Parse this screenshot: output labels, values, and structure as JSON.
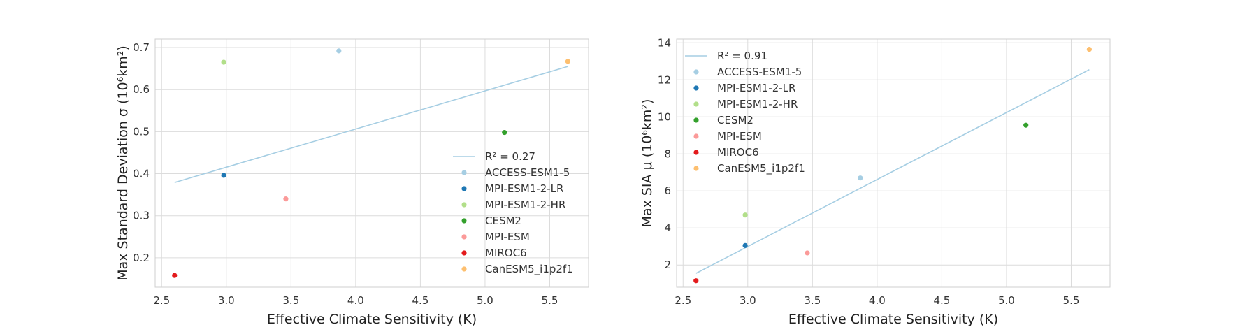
{
  "chart_data": [
    {
      "type": "scatter",
      "xlabel": "Effective Climate Sensitivity (K)",
      "ylabel": "Max Standard Deviation σ (10⁶km²)",
      "xlim": [
        2.45,
        5.8
      ],
      "ylim": [
        0.13,
        0.72
      ],
      "xticks": [
        "2.5",
        "3.0",
        "3.5",
        "4.0",
        "4.5",
        "5.0",
        "5.5"
      ],
      "yticks": [
        "0.2",
        "0.3",
        "0.4",
        "0.5",
        "0.6",
        "0.7"
      ],
      "grid": true,
      "legend_position": "lower-right",
      "fit_line": {
        "label": "R² = 0.27",
        "x": [
          2.6,
          5.64
        ],
        "y": [
          0.379,
          0.655
        ],
        "color": "#a6cee3"
      },
      "series": [
        {
          "name": "ACCESS-ESM1-5",
          "color": "#a6cee3",
          "x": 3.87,
          "y": 0.692
        },
        {
          "name": "MPI-ESM1-2-LR",
          "color": "#1f78b4",
          "x": 2.98,
          "y": 0.396
        },
        {
          "name": "MPI-ESM1-2-HR",
          "color": "#b2df8a",
          "x": 2.98,
          "y": 0.665
        },
        {
          "name": "CESM2",
          "color": "#33a02c",
          "x": 5.15,
          "y": 0.498
        },
        {
          "name": "MPI-ESM",
          "color": "#fb9a99",
          "x": 3.46,
          "y": 0.34
        },
        {
          "name": "MIROC6",
          "color": "#e31a1c",
          "x": 2.6,
          "y": 0.158
        },
        {
          "name": "CanESM5_i1p2f1",
          "color": "#fdbf6f",
          "x": 5.64,
          "y": 0.667
        }
      ]
    },
    {
      "type": "scatter",
      "xlabel": "Effective Climate Sensitivity (K)",
      "ylabel": "Max SIA μ (10⁶km²)",
      "xlim": [
        2.45,
        5.8
      ],
      "ylim": [
        0.8,
        14.2
      ],
      "xticks": [
        "2.5",
        "3.0",
        "3.5",
        "4.0",
        "4.5",
        "5.0",
        "5.5"
      ],
      "yticks": [
        "2",
        "4",
        "6",
        "8",
        "10",
        "12",
        "14"
      ],
      "grid": true,
      "legend_position": "upper-left",
      "fit_line": {
        "label": "R² = 0.91",
        "x": [
          2.6,
          5.64
        ],
        "y": [
          1.55,
          12.55
        ],
        "color": "#a6cee3"
      },
      "series": [
        {
          "name": "ACCESS-ESM1-5",
          "color": "#a6cee3",
          "x": 3.87,
          "y": 6.7
        },
        {
          "name": "MPI-ESM1-2-LR",
          "color": "#1f78b4",
          "x": 2.98,
          "y": 3.05
        },
        {
          "name": "MPI-ESM1-2-HR",
          "color": "#b2df8a",
          "x": 2.98,
          "y": 4.7
        },
        {
          "name": "CESM2",
          "color": "#33a02c",
          "x": 5.15,
          "y": 9.55
        },
        {
          "name": "MPI-ESM",
          "color": "#fb9a99",
          "x": 3.46,
          "y": 2.65
        },
        {
          "name": "MIROC6",
          "color": "#e31a1c",
          "x": 2.6,
          "y": 1.15
        },
        {
          "name": "CanESM5_i1p2f1",
          "color": "#fdbf6f",
          "x": 5.64,
          "y": 13.65
        }
      ]
    }
  ]
}
